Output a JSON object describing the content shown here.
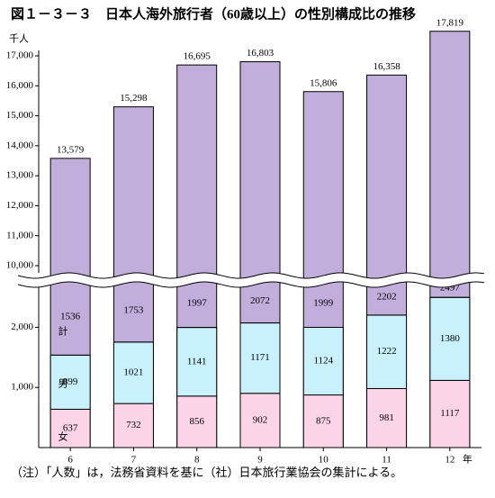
{
  "chart_data": {
    "type": "bar",
    "stacked": true,
    "title": "図１－３－３　日本人海外旅行者（60歳以上）の性別構成比の推移",
    "y_unit": "千人",
    "x_unit": "年",
    "note": "（注）「人数」は，法務省資料を基に（社）日本旅行業協会の集計による。",
    "categories": [
      "6",
      "7",
      "8",
      "9",
      "10",
      "11",
      "12"
    ],
    "series": [
      {
        "name": "女",
        "color": "#fcd4e8",
        "values": [
          637,
          732,
          856,
          902,
          875,
          981,
          1117
        ]
      },
      {
        "name": "男",
        "color": "#c9f1fb",
        "values": [
          899,
          1021,
          1141,
          1171,
          1124,
          1222,
          1380
        ]
      },
      {
        "name": "計",
        "color": "#c1aedb",
        "values": [
          1536,
          1753,
          1997,
          2072,
          1999,
          2202,
          2497
        ]
      }
    ],
    "totals": {
      "values": [
        13579,
        15298,
        16695,
        16803,
        15806,
        16358,
        17819
      ],
      "value_labels": [
        "13,579",
        "15,298",
        "16,695",
        "16,803",
        "15,806",
        "16,358",
        "17,819"
      ]
    },
    "ylim": [
      0,
      17300
    ],
    "axis_break": [
      2800,
      9550
    ],
    "yticks": [
      {
        "value": 1000,
        "label": "1,000"
      },
      {
        "value": 2000,
        "label": "2,000"
      },
      {
        "value": 10000,
        "label": "10,000"
      },
      {
        "value": 11000,
        "label": "11,000"
      },
      {
        "value": 12000,
        "label": "12,000"
      },
      {
        "value": 13000,
        "label": "13,000"
      },
      {
        "value": 14000,
        "label": "14,000"
      },
      {
        "value": 15000,
        "label": "15,000"
      },
      {
        "value": 16000,
        "label": "16,000"
      },
      {
        "value": 17000,
        "label": "17,000"
      }
    ]
  }
}
